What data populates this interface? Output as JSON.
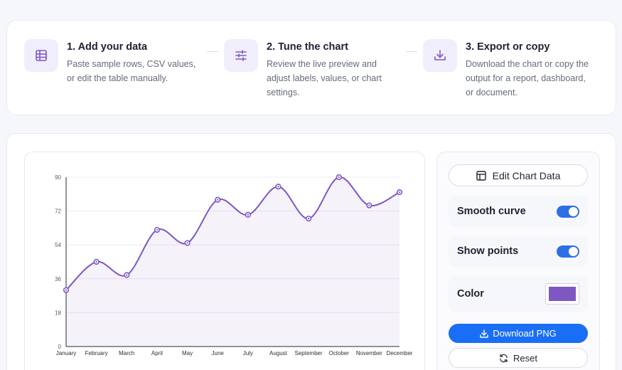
{
  "steps": [
    {
      "title": "1. Add your data",
      "desc1": "Paste sample rows, CSV values,",
      "desc2": "or edit the table manually.",
      "desc3": "",
      "icon": "table-icon"
    },
    {
      "title": "2. Tune the chart",
      "desc1": "Review the live preview and",
      "desc2": "adjust labels, values, or chart",
      "desc3": "settings.",
      "icon": "sliders-icon"
    },
    {
      "title": "3. Export or copy",
      "desc1": "Download the chart or copy the",
      "desc2": "output for a report, dashboard,",
      "desc3": "or document.",
      "icon": "download-icon"
    }
  ],
  "controls": {
    "edit_label": "Edit Chart Data",
    "smooth_label": "Smooth curve",
    "smooth_on": true,
    "points_label": "Show points",
    "points_on": true,
    "color_label": "Color",
    "color_value": "#7e57c2",
    "download_label": "Download PNG",
    "reset_label": "Reset"
  },
  "colors": {
    "accent": "#7e57c2",
    "primary_button": "#1a6ef5",
    "toggle": "#2f6fe4"
  },
  "chart_data": {
    "type": "line",
    "categories": [
      "January",
      "February",
      "March",
      "April",
      "May",
      "June",
      "July",
      "August",
      "September",
      "October",
      "November",
      "December"
    ],
    "values": [
      30,
      45,
      38,
      62,
      55,
      78,
      70,
      85,
      68,
      90,
      75,
      82
    ],
    "ylim": [
      0,
      90
    ],
    "yticks": [
      0,
      18,
      36,
      54,
      72,
      90
    ],
    "smooth": true,
    "show_points": true,
    "fill_area": true,
    "grid": "horizontal",
    "color": "#7e57c2"
  }
}
